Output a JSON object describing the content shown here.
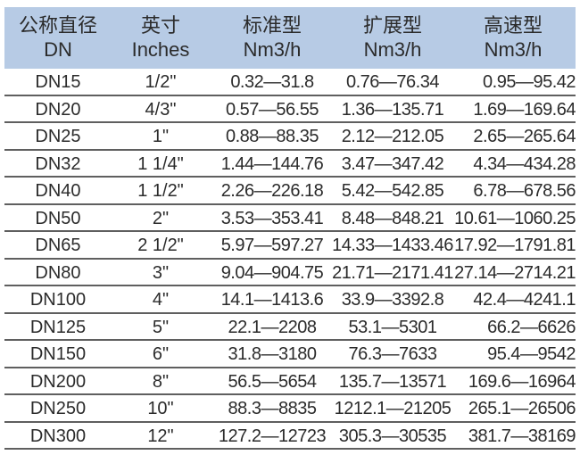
{
  "header": {
    "columns": [
      {
        "line1": "公称直径",
        "line2": "DN"
      },
      {
        "line1": "英寸",
        "line2": "Inches"
      },
      {
        "line1": "标准型",
        "line2": "Nm3/h"
      },
      {
        "line1": "扩展型",
        "line2": "Nm3/h"
      },
      {
        "line1": "高速型",
        "line2": "Nm3/h"
      }
    ],
    "background": "#b7cbe5"
  },
  "rows": [
    {
      "dn": "DN15",
      "inches": "1/2\"",
      "standard": "0.32—31.8",
      "extended": "0.76—76.34",
      "high_speed": "0.95—95.42"
    },
    {
      "dn": "DN20",
      "inches": "4/3\"",
      "standard": "0.57—56.55",
      "extended": "1.36—135.71",
      "high_speed": "1.69—169.64"
    },
    {
      "dn": "DN25",
      "inches": "1\"",
      "standard": "0.88—88.35",
      "extended": "2.12—212.05",
      "high_speed": "2.65—265.64"
    },
    {
      "dn": "DN32",
      "inches": "1 1/4\"",
      "standard": "1.44—144.76",
      "extended": "3.47—347.42",
      "high_speed": "4.34—434.28"
    },
    {
      "dn": "DN40",
      "inches": "1 1/2\"",
      "standard": "2.26—226.18",
      "extended": "5.42—542.85",
      "high_speed": "6.78—678.56"
    },
    {
      "dn": "DN50",
      "inches": "2\"",
      "standard": "3.53—353.41",
      "extended": "8.48—848.21",
      "high_speed": "10.61—1060.25"
    },
    {
      "dn": "DN65",
      "inches": "2 1/2\"",
      "standard": "5.97—597.27",
      "extended": "14.33—1433.46",
      "high_speed": "17.92—1791.81"
    },
    {
      "dn": "DN80",
      "inches": "3\"",
      "standard": "9.04—904.75",
      "extended": "21.71—2171.41",
      "high_speed": "27.14—2714.21"
    },
    {
      "dn": "DN100",
      "inches": "4\"",
      "standard": "14.1—1413.6",
      "extended": "33.9—3392.8",
      "high_speed": "42.4—4241.1"
    },
    {
      "dn": "DN125",
      "inches": "5\"",
      "standard": "22.1—2208",
      "extended": "53.1—5301",
      "high_speed": "66.2—6626"
    },
    {
      "dn": "DN150",
      "inches": "6\"",
      "standard": "31.8—3180",
      "extended": "76.3—7633",
      "high_speed": "95.4—9542"
    },
    {
      "dn": "DN200",
      "inches": "8\"",
      "standard": "56.5—5654",
      "extended": "135.7—13571",
      "high_speed": "169.6—16964"
    },
    {
      "dn": "DN250",
      "inches": "10\"",
      "standard": "88.3—8835",
      "extended": "1212.1—21205",
      "high_speed": "265.1—26506"
    },
    {
      "dn": "DN300",
      "inches": "12\"",
      "standard": "127.2—12723",
      "extended": "305.3—30535",
      "high_speed": "381.7—38169"
    }
  ]
}
